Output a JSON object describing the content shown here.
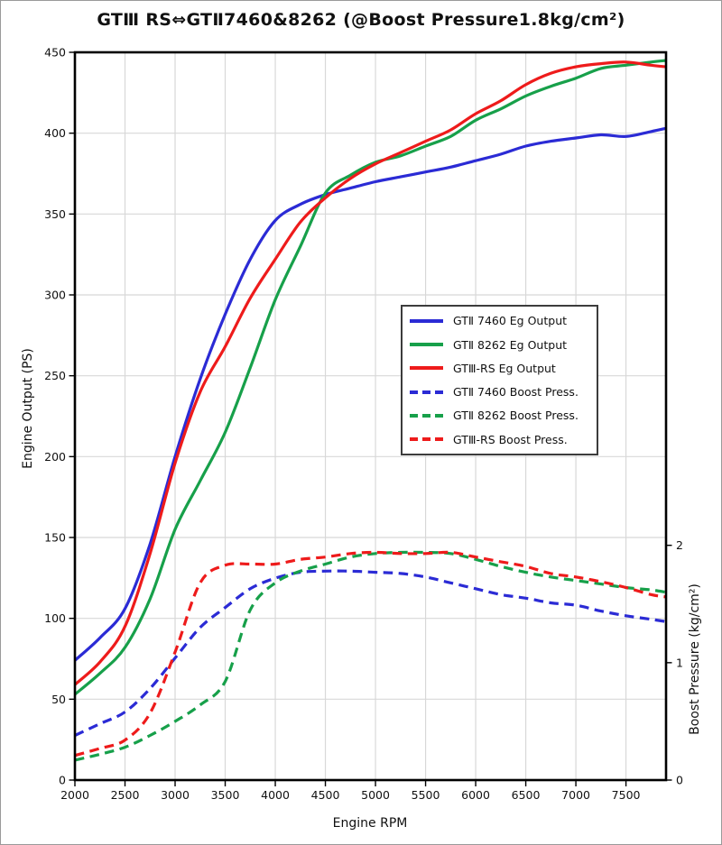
{
  "figure": {
    "background": "#ffffff",
    "border_color": "#9a9a9a",
    "frame_color": "#000000",
    "grid_color": "#d8d8d8",
    "tick_color": "#000000"
  },
  "chart_data": {
    "type": "line",
    "title": "GTⅢ RS⇔GTⅡ7460&8262 (@Boost Pressure1.8kg/cm²)",
    "xlabel": "Engine RPM",
    "ylabel_left": "Engine Output (PS)",
    "ylabel_right": "Boost Pressure (kg/cm²)",
    "grid": true,
    "legend_position": "inside-center-right",
    "x_range": [
      2000,
      7900
    ],
    "x_ticks": [
      2000,
      2500,
      3000,
      3500,
      4000,
      4500,
      5000,
      5500,
      6000,
      6500,
      7000,
      7500
    ],
    "y_left_range": [
      0,
      450
    ],
    "y_left_ticks": [
      0,
      50,
      100,
      150,
      200,
      250,
      300,
      350,
      400,
      450
    ],
    "y_right_range": [
      0,
      6.2
    ],
    "y_right_ticks": [
      0,
      1,
      2
    ],
    "rpm": [
      2000,
      2250,
      2500,
      2750,
      3000,
      3250,
      3500,
      3750,
      4000,
      4250,
      4500,
      4750,
      5000,
      5250,
      5500,
      5750,
      6000,
      6250,
      6500,
      6750,
      7000,
      7250,
      7500,
      7750,
      7900
    ],
    "series": [
      {
        "name": "GTⅡ 7460 Eg Output",
        "color": "#2b2bd5",
        "style": "solid",
        "axis": "left",
        "values": [
          74,
          88,
          106,
          146,
          200,
          248,
          288,
          322,
          346,
          356,
          362,
          366,
          370,
          373,
          376,
          379,
          383,
          387,
          392,
          395,
          397,
          399,
          398,
          401,
          403
        ]
      },
      {
        "name": "GTⅡ 8262 Eg Output",
        "color": "#17a04a",
        "style": "solid",
        "axis": "left",
        "values": [
          53,
          66,
          82,
          112,
          155,
          185,
          215,
          255,
          297,
          330,
          363,
          374,
          382,
          386,
          392,
          398,
          408,
          415,
          423,
          429,
          434,
          440,
          442,
          444,
          445
        ]
      },
      {
        "name": "GTⅢ-RS Eg Output",
        "color": "#ee1b1b",
        "style": "solid",
        "axis": "left",
        "values": [
          59,
          73,
          95,
          140,
          196,
          240,
          268,
          298,
          322,
          345,
          360,
          372,
          381,
          388,
          395,
          402,
          412,
          420,
          430,
          437,
          441,
          443,
          444,
          442,
          441
        ]
      },
      {
        "name": "GTⅡ 7460 Boost Press.",
        "color": "#2b2bd5",
        "style": "dashed",
        "axis": "right",
        "values": [
          0.38,
          0.48,
          0.58,
          0.78,
          1.04,
          1.3,
          1.47,
          1.63,
          1.72,
          1.77,
          1.78,
          1.78,
          1.77,
          1.76,
          1.73,
          1.68,
          1.63,
          1.58,
          1.55,
          1.51,
          1.49,
          1.44,
          1.4,
          1.37,
          1.35
        ]
      },
      {
        "name": "GTⅡ 8262 Boost Press.",
        "color": "#17a04a",
        "style": "dashed",
        "axis": "right",
        "values": [
          0.17,
          0.22,
          0.28,
          0.38,
          0.5,
          0.64,
          0.84,
          1.45,
          1.68,
          1.78,
          1.84,
          1.9,
          1.93,
          1.94,
          1.94,
          1.93,
          1.88,
          1.82,
          1.77,
          1.73,
          1.7,
          1.67,
          1.64,
          1.62,
          1.6
        ]
      },
      {
        "name": "GTⅢ-RS Boost Press.",
        "color": "#ee1b1b",
        "style": "dashed",
        "axis": "right",
        "values": [
          0.21,
          0.27,
          0.34,
          0.57,
          1.09,
          1.68,
          1.83,
          1.84,
          1.84,
          1.88,
          1.9,
          1.93,
          1.94,
          1.93,
          1.93,
          1.94,
          1.9,
          1.86,
          1.82,
          1.76,
          1.73,
          1.69,
          1.64,
          1.58,
          1.56
        ]
      }
    ]
  }
}
